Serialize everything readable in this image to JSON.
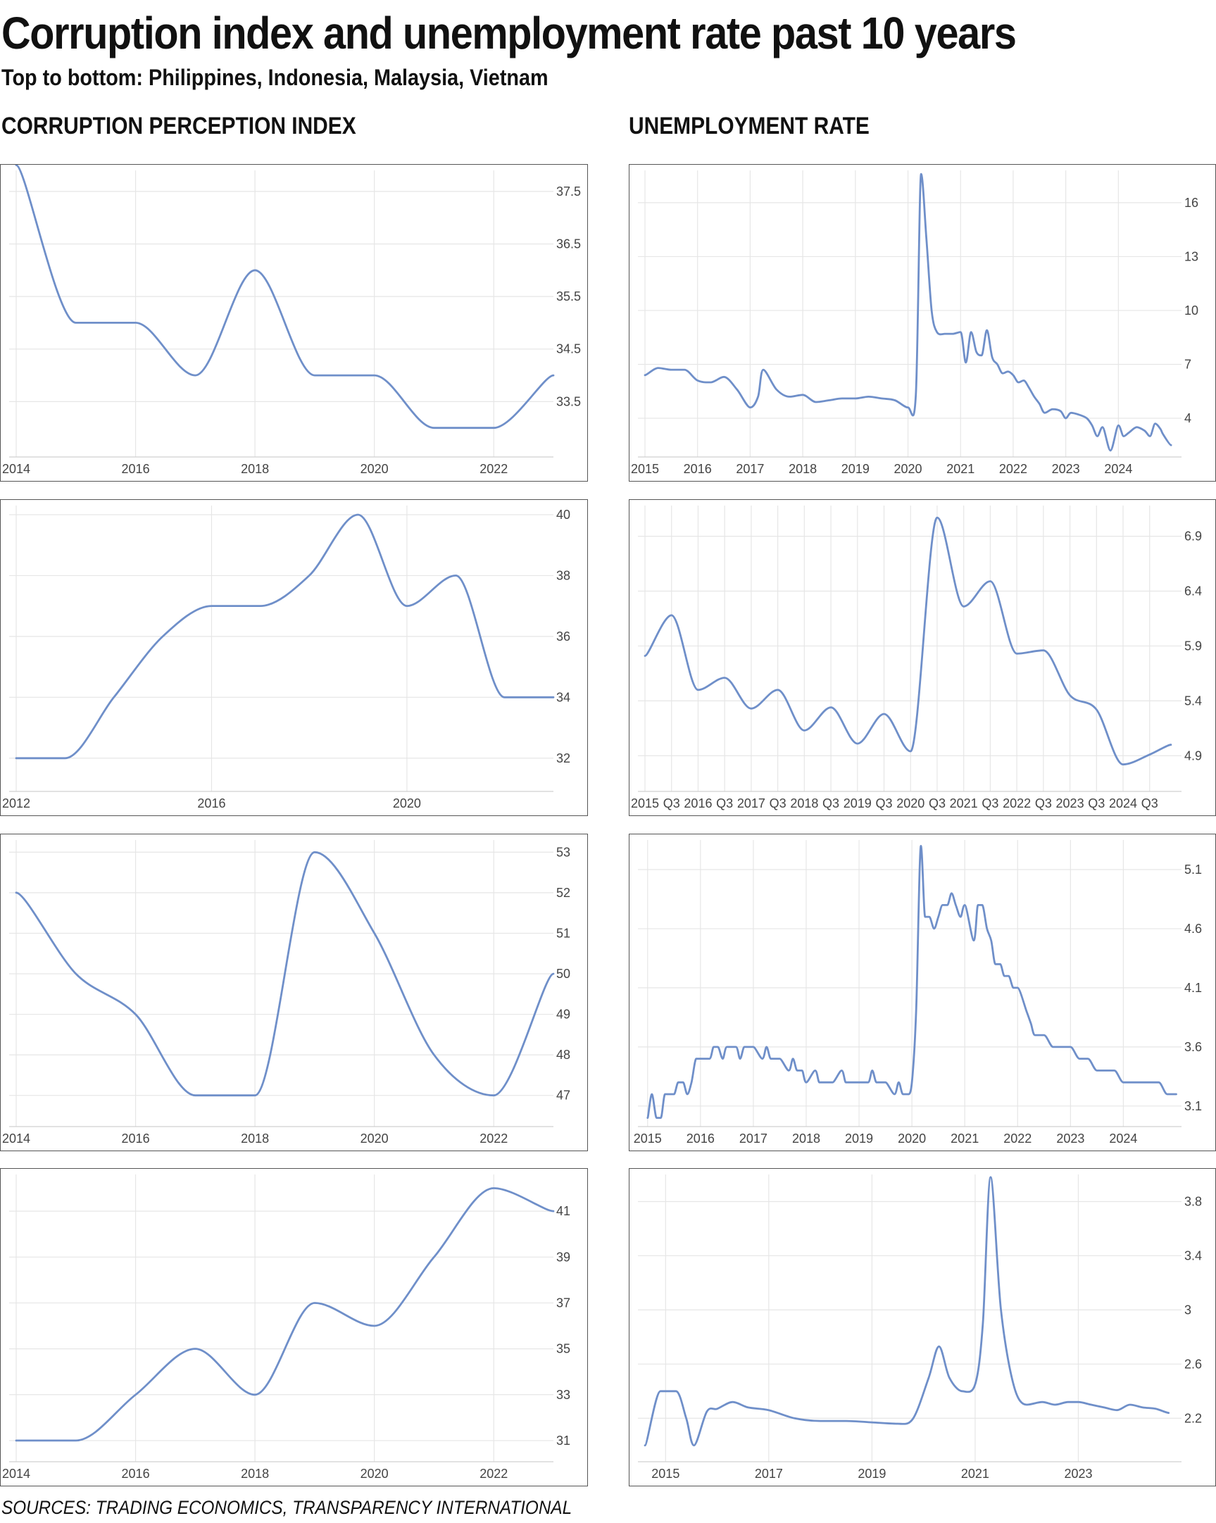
{
  "title": "Corruption index and unemployment rate past 10 years",
  "subtitle": "Top to bottom: Philippines, Indonesia, Malaysia, Vietnam",
  "headings": {
    "left": "CORRUPTION PERCEPTION INDEX",
    "right": "UNEMPLOYMENT RATE"
  },
  "source": "SOURCES: TRADING ECONOMICS, TRANSPARENCY INTERNATIONAL",
  "line_color": "#6f8fc9",
  "chart_data": [
    {
      "type": "line",
      "country": "Philippines",
      "metric": "Corruption Perception Index",
      "xlim": [
        2014,
        2023
      ],
      "ylim": [
        32.5,
        37.9
      ],
      "yticks": [
        37.5,
        36.5,
        35.5,
        34.5,
        33.5
      ],
      "xticks": [
        {
          "v": 2014,
          "label": "2014"
        },
        {
          "v": 2016,
          "label": "2016"
        },
        {
          "v": 2018,
          "label": "2018"
        },
        {
          "v": 2020,
          "label": "2020"
        },
        {
          "v": 2022,
          "label": "2022"
        }
      ],
      "x": [
        2014,
        2015,
        2016,
        2017,
        2018,
        2019,
        2020,
        2021,
        2022,
        2023
      ],
      "y": [
        38,
        35,
        35,
        34,
        36,
        34,
        34,
        33,
        33,
        34
      ]
    },
    {
      "type": "line",
      "country": "Indonesia",
      "metric": "Corruption Perception Index",
      "xlim": [
        2012,
        2023
      ],
      "ylim": [
        31,
        40.3
      ],
      "yticks": [
        40,
        38,
        36,
        34,
        32
      ],
      "xticks": [
        {
          "v": 2012,
          "label": "2012"
        },
        {
          "v": 2016,
          "label": "2016"
        },
        {
          "v": 2020,
          "label": "2020"
        }
      ],
      "x": [
        2012,
        2013,
        2014,
        2015,
        2016,
        2017,
        2018,
        2019,
        2020,
        2021,
        2022,
        2023
      ],
      "y": [
        32,
        32,
        34,
        36,
        37,
        37,
        38,
        40,
        37,
        38,
        34,
        34
      ]
    },
    {
      "type": "line",
      "country": "Malaysia",
      "metric": "Corruption Perception Index",
      "xlim": [
        2014,
        2023
      ],
      "ylim": [
        46.3,
        53.3
      ],
      "yticks": [
        53,
        52,
        51,
        50,
        49,
        48,
        47
      ],
      "xticks": [
        {
          "v": 2014,
          "label": "2014"
        },
        {
          "v": 2016,
          "label": "2016"
        },
        {
          "v": 2018,
          "label": "2018"
        },
        {
          "v": 2020,
          "label": "2020"
        },
        {
          "v": 2022,
          "label": "2022"
        }
      ],
      "x": [
        2014,
        2015,
        2016,
        2017,
        2018,
        2019,
        2020,
        2021,
        2022,
        2023
      ],
      "y": [
        52,
        50,
        49,
        47,
        47,
        53,
        51,
        48,
        47,
        50
      ]
    },
    {
      "type": "line",
      "country": "Vietnam",
      "metric": "Corruption Perception Index",
      "xlim": [
        2014,
        2023
      ],
      "ylim": [
        30.2,
        42.6
      ],
      "yticks": [
        41,
        39,
        37,
        35,
        33,
        31
      ],
      "xticks": [
        {
          "v": 2014,
          "label": "2014"
        },
        {
          "v": 2016,
          "label": "2016"
        },
        {
          "v": 2018,
          "label": "2018"
        },
        {
          "v": 2020,
          "label": "2020"
        },
        {
          "v": 2022,
          "label": "2022"
        }
      ],
      "x": [
        2014,
        2015,
        2016,
        2017,
        2018,
        2019,
        2020,
        2021,
        2022,
        2023
      ],
      "y": [
        31,
        31,
        33,
        35,
        33,
        37,
        36,
        39,
        42,
        41
      ]
    },
    {
      "type": "line",
      "country": "Philippines",
      "metric": "Unemployment Rate",
      "xlim": [
        2015,
        2025.2
      ],
      "ylim": [
        2,
        17.8
      ],
      "yticks": [
        16,
        13,
        10,
        7,
        4
      ],
      "xticks": [
        {
          "v": 2015,
          "label": "2015"
        },
        {
          "v": 2016,
          "label": "2016"
        },
        {
          "v": 2017,
          "label": "2017"
        },
        {
          "v": 2018,
          "label": "2018"
        },
        {
          "v": 2019,
          "label": "2019"
        },
        {
          "v": 2020,
          "label": "2020"
        },
        {
          "v": 2021,
          "label": "2021"
        },
        {
          "v": 2022,
          "label": "2022"
        },
        {
          "v": 2023,
          "label": "2023"
        },
        {
          "v": 2024,
          "label": "2024"
        }
      ],
      "x": [
        2015.0,
        2015.25,
        2015.5,
        2015.75,
        2016.0,
        2016.25,
        2016.5,
        2016.75,
        2017.0,
        2017.15,
        2017.25,
        2017.5,
        2017.75,
        2018.0,
        2018.25,
        2018.5,
        2018.75,
        2019.0,
        2019.25,
        2019.5,
        2019.75,
        2020.0,
        2020.15,
        2020.25,
        2020.35,
        2020.45,
        2020.55,
        2020.7,
        2020.85,
        2021.0,
        2021.1,
        2021.2,
        2021.3,
        2021.4,
        2021.5,
        2021.6,
        2021.7,
        2021.8,
        2021.9,
        2022.0,
        2022.1,
        2022.2,
        2022.3,
        2022.4,
        2022.5,
        2022.6,
        2022.75,
        2022.9,
        2023.0,
        2023.1,
        2023.25,
        2023.4,
        2023.5,
        2023.6,
        2023.7,
        2023.85,
        2024.0,
        2024.1,
        2024.2,
        2024.35,
        2024.5,
        2024.6,
        2024.7,
        2024.8,
        2024.85,
        2025.0
      ],
      "y": [
        6.4,
        6.8,
        6.7,
        6.7,
        6.1,
        6.0,
        6.3,
        5.6,
        4.6,
        5.2,
        6.7,
        5.6,
        5.2,
        5.3,
        4.9,
        5.0,
        5.1,
        5.1,
        5.2,
        5.1,
        5.0,
        4.6,
        5.3,
        17.6,
        14.0,
        10.0,
        8.8,
        8.7,
        8.7,
        8.8,
        7.1,
        8.8,
        7.7,
        7.5,
        8.9,
        7.4,
        7.0,
        6.5,
        6.6,
        6.4,
        6.0,
        6.1,
        5.7,
        5.2,
        4.8,
        4.3,
        4.5,
        4.4,
        4.0,
        4.3,
        4.2,
        4.0,
        3.6,
        3.0,
        3.5,
        2.2,
        3.6,
        3.0,
        3.2,
        3.5,
        3.3,
        3.0,
        3.7,
        3.4,
        3.1,
        2.5
      ]
    },
    {
      "type": "line",
      "country": "Indonesia",
      "metric": "Unemployment Rate",
      "xlim": [
        2015,
        2025.1
      ],
      "ylim": [
        4.6,
        7.18
      ],
      "yticks": [
        6.9,
        6.4,
        5.9,
        5.4,
        4.9
      ],
      "xticks": [
        {
          "v": 2015,
          "label": "2015"
        },
        {
          "v": 2015.5,
          "label": "Q3"
        },
        {
          "v": 2016,
          "label": "2016"
        },
        {
          "v": 2016.5,
          "label": "Q3"
        },
        {
          "v": 2017,
          "label": "2017"
        },
        {
          "v": 2017.5,
          "label": "Q3"
        },
        {
          "v": 2018,
          "label": "2018"
        },
        {
          "v": 2018.5,
          "label": "Q3"
        },
        {
          "v": 2019,
          "label": "2019"
        },
        {
          "v": 2019.5,
          "label": "Q3"
        },
        {
          "v": 2020,
          "label": "2020"
        },
        {
          "v": 2020.5,
          "label": "Q3"
        },
        {
          "v": 2021,
          "label": "2021"
        },
        {
          "v": 2021.5,
          "label": "Q3"
        },
        {
          "v": 2022,
          "label": "2022"
        },
        {
          "v": 2022.5,
          "label": "Q3"
        },
        {
          "v": 2023,
          "label": "2023"
        },
        {
          "v": 2023.5,
          "label": "Q3"
        },
        {
          "v": 2024,
          "label": "2024"
        },
        {
          "v": 2024.5,
          "label": "Q3"
        }
      ],
      "x": [
        2015.0,
        2015.5,
        2016.0,
        2016.5,
        2017.0,
        2017.5,
        2018.0,
        2018.5,
        2019.0,
        2019.5,
        2020.0,
        2020.5,
        2021.0,
        2021.5,
        2022.0,
        2022.5,
        2023.0,
        2023.5,
        2024.0,
        2024.5,
        2024.9
      ],
      "y": [
        5.81,
        6.18,
        5.5,
        5.61,
        5.33,
        5.5,
        5.13,
        5.34,
        5.01,
        5.28,
        4.94,
        7.07,
        6.26,
        6.49,
        5.83,
        5.86,
        5.45,
        5.32,
        4.82,
        4.91,
        5.0
      ]
    },
    {
      "type": "line",
      "country": "Malaysia",
      "metric": "Unemployment Rate",
      "xlim": [
        2014.95,
        2025.1
      ],
      "ylim": [
        2.95,
        5.35
      ],
      "yticks": [
        5.1,
        4.6,
        4.1,
        3.6,
        3.1
      ],
      "xticks": [
        {
          "v": 2015,
          "label": "2015"
        },
        {
          "v": 2016,
          "label": "2016"
        },
        {
          "v": 2017,
          "label": "2017"
        },
        {
          "v": 2018,
          "label": "2018"
        },
        {
          "v": 2019,
          "label": "2019"
        },
        {
          "v": 2020,
          "label": "2020"
        },
        {
          "v": 2021,
          "label": "2021"
        },
        {
          "v": 2022,
          "label": "2022"
        },
        {
          "v": 2023,
          "label": "2023"
        },
        {
          "v": 2024,
          "label": "2024"
        }
      ],
      "x": [
        2015.0,
        2015.08,
        2015.17,
        2015.25,
        2015.33,
        2015.42,
        2015.5,
        2015.58,
        2015.67,
        2015.75,
        2015.83,
        2015.92,
        2016.0,
        2016.17,
        2016.25,
        2016.33,
        2016.42,
        2016.5,
        2016.67,
        2016.75,
        2016.83,
        2016.92,
        2017.0,
        2017.17,
        2017.25,
        2017.33,
        2017.42,
        2017.5,
        2017.67,
        2017.75,
        2017.83,
        2017.92,
        2018.0,
        2018.17,
        2018.25,
        2018.33,
        2018.42,
        2018.5,
        2018.67,
        2018.75,
        2018.83,
        2018.92,
        2019.0,
        2019.17,
        2019.25,
        2019.33,
        2019.42,
        2019.5,
        2019.67,
        2019.75,
        2019.83,
        2019.92,
        2020.0,
        2020.08,
        2020.17,
        2020.25,
        2020.33,
        2020.42,
        2020.5,
        2020.58,
        2020.67,
        2020.75,
        2020.83,
        2020.92,
        2021.0,
        2021.17,
        2021.25,
        2021.33,
        2021.42,
        2021.5,
        2021.58,
        2021.67,
        2021.75,
        2021.83,
        2021.92,
        2022.0,
        2022.17,
        2022.25,
        2022.33,
        2022.5,
        2022.67,
        2022.83,
        2023.0,
        2023.17,
        2023.33,
        2023.5,
        2023.67,
        2023.83,
        2024.0,
        2024.17,
        2024.33,
        2024.5,
        2024.67,
        2024.83,
        2025.0
      ],
      "y": [
        3.0,
        3.2,
        3.0,
        3.0,
        3.2,
        3.2,
        3.2,
        3.3,
        3.3,
        3.2,
        3.3,
        3.5,
        3.5,
        3.5,
        3.6,
        3.6,
        3.5,
        3.6,
        3.6,
        3.5,
        3.6,
        3.6,
        3.6,
        3.5,
        3.6,
        3.5,
        3.5,
        3.5,
        3.4,
        3.5,
        3.4,
        3.4,
        3.3,
        3.4,
        3.3,
        3.3,
        3.3,
        3.3,
        3.4,
        3.3,
        3.3,
        3.3,
        3.3,
        3.3,
        3.4,
        3.3,
        3.3,
        3.3,
        3.2,
        3.3,
        3.2,
        3.2,
        3.3,
        3.9,
        5.3,
        4.7,
        4.7,
        4.6,
        4.7,
        4.8,
        4.8,
        4.9,
        4.8,
        4.7,
        4.8,
        4.5,
        4.8,
        4.8,
        4.6,
        4.5,
        4.3,
        4.3,
        4.2,
        4.2,
        4.1,
        4.1,
        3.9,
        3.8,
        3.7,
        3.7,
        3.6,
        3.6,
        3.6,
        3.5,
        3.5,
        3.4,
        3.4,
        3.4,
        3.3,
        3.3,
        3.3,
        3.3,
        3.3,
        3.2,
        3.2
      ]
    },
    {
      "type": "line",
      "country": "Vietnam",
      "metric": "Unemployment Rate",
      "xlim": [
        2014.6,
        2025.0
      ],
      "ylim": [
        1.9,
        4.0
      ],
      "yticks": [
        3.8,
        3.4,
        3.0,
        2.6,
        2.2
      ],
      "xticks": [
        {
          "v": 2015,
          "label": "2015"
        },
        {
          "v": 2017,
          "label": "2017"
        },
        {
          "v": 2019,
          "label": "2019"
        },
        {
          "v": 2021,
          "label": "2021"
        },
        {
          "v": 2023,
          "label": "2023"
        }
      ],
      "x": [
        2014.6,
        2014.9,
        2015.2,
        2015.4,
        2015.55,
        2015.8,
        2016.0,
        2016.3,
        2016.6,
        2017.0,
        2017.5,
        2018.0,
        2018.5,
        2019.0,
        2019.5,
        2019.8,
        2020.1,
        2020.3,
        2020.5,
        2020.75,
        2021.0,
        2021.15,
        2021.3,
        2021.5,
        2021.75,
        2022.0,
        2022.3,
        2022.55,
        2022.8,
        2023.0,
        2023.25,
        2023.5,
        2023.75,
        2024.0,
        2024.25,
        2024.5,
        2024.75
      ],
      "y": [
        2.0,
        2.4,
        2.4,
        2.2,
        2.0,
        2.25,
        2.27,
        2.32,
        2.28,
        2.26,
        2.2,
        2.18,
        2.18,
        2.17,
        2.16,
        2.2,
        2.5,
        2.73,
        2.5,
        2.4,
        2.45,
        2.9,
        3.98,
        3.0,
        2.44,
        2.3,
        2.32,
        2.3,
        2.32,
        2.32,
        2.3,
        2.28,
        2.26,
        2.3,
        2.28,
        2.27,
        2.24
      ]
    }
  ]
}
